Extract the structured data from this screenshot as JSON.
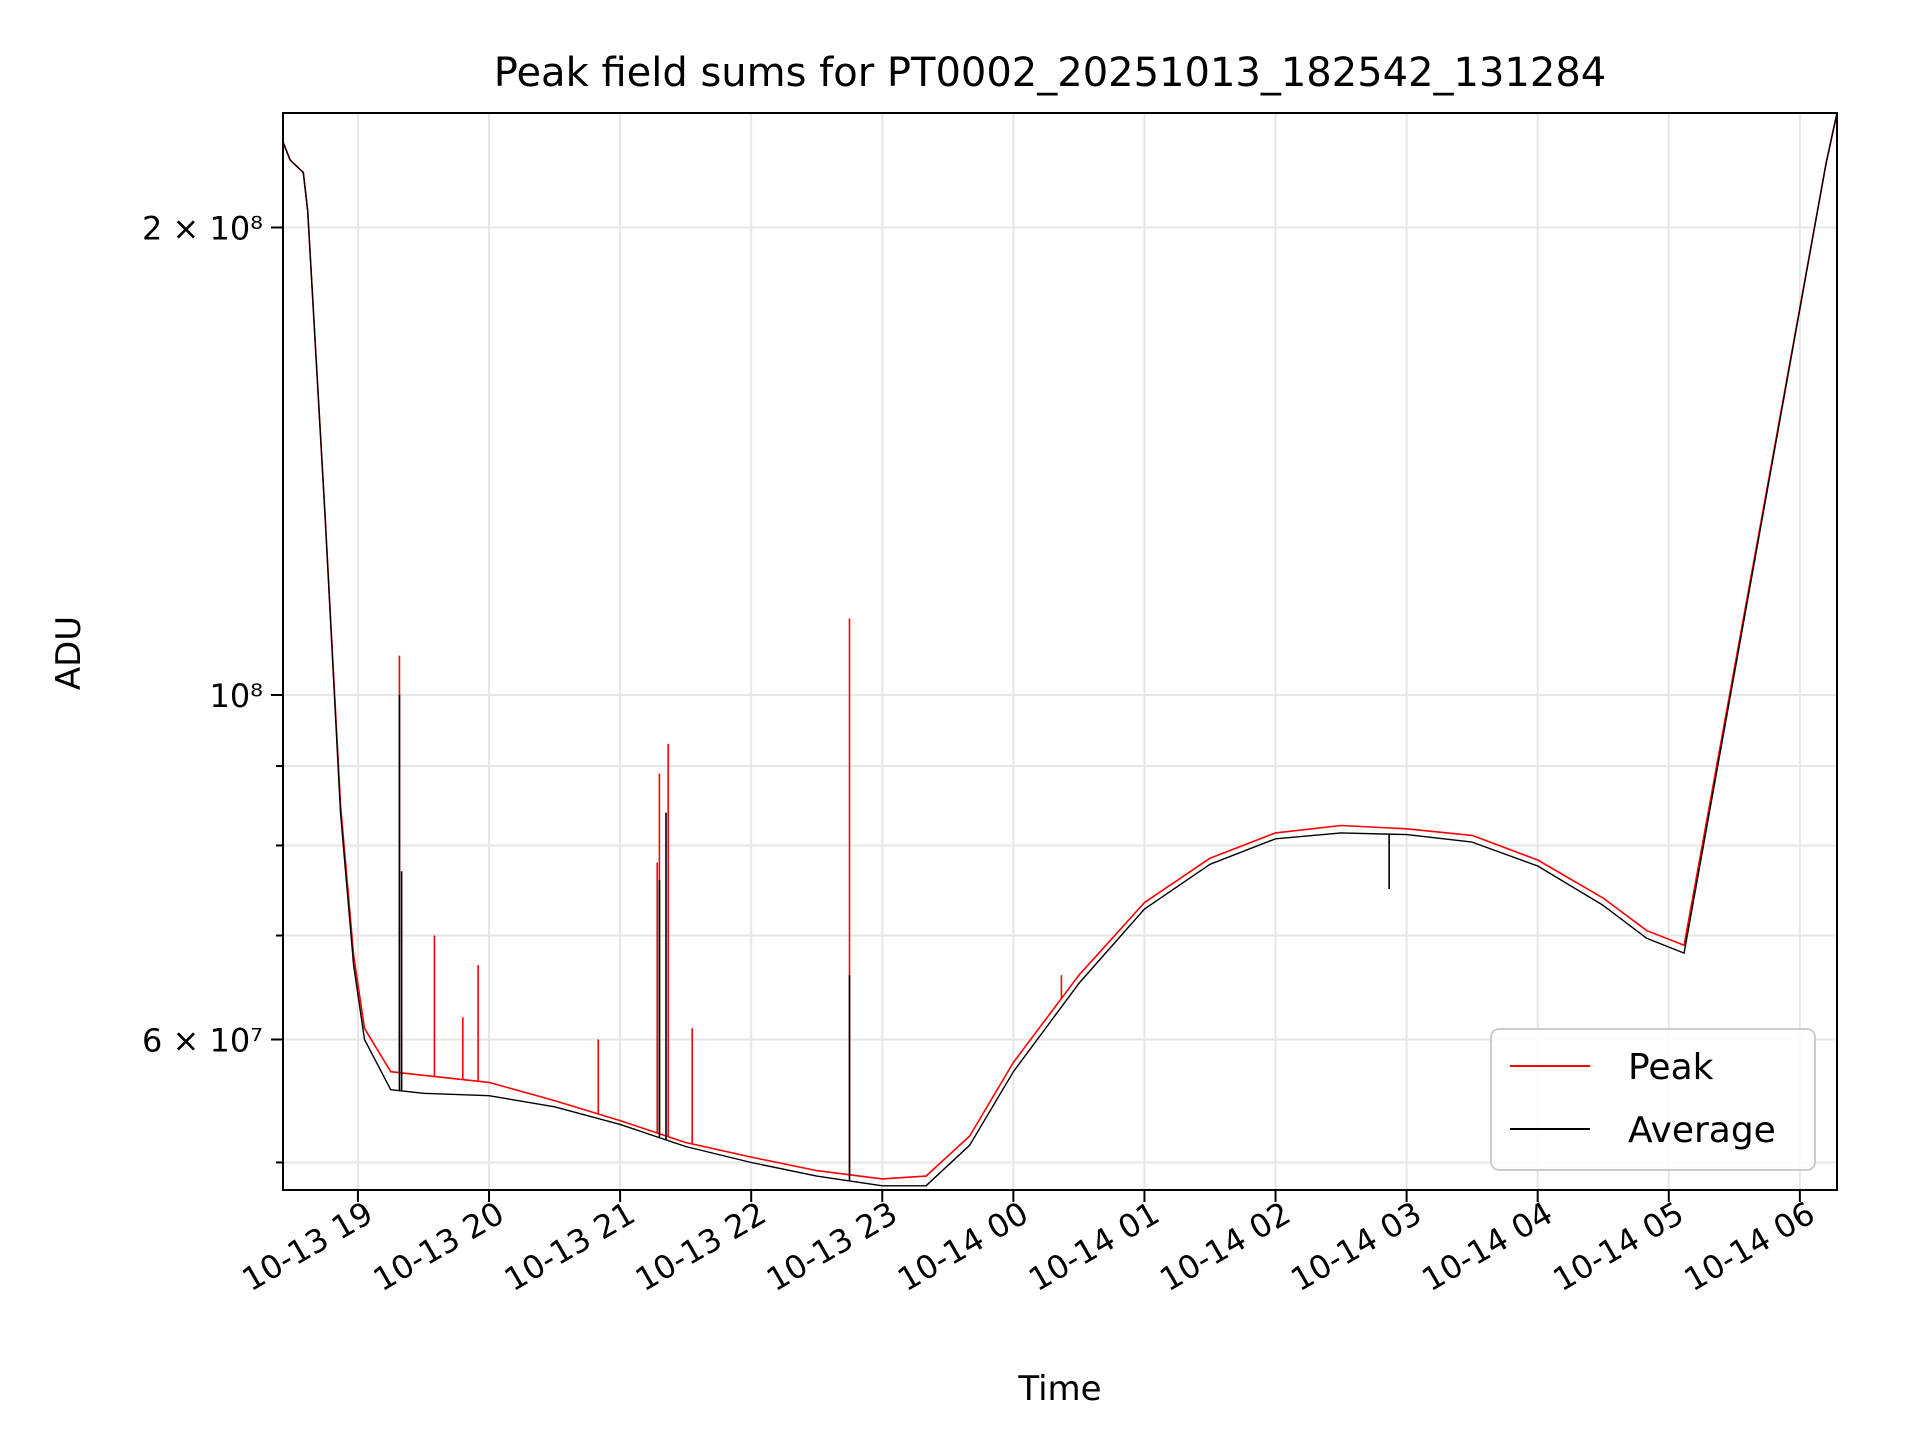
{
  "chart_data": {
    "type": "line",
    "title": "Peak field sums for PT0002_20251013_182542_131284",
    "xlabel": "Time",
    "ylabel": "ADU",
    "y_scale": "log",
    "ylim": [
      48000000,
      237000000
    ],
    "xlim": [
      "2025-10-13 18:25:42",
      "2025-10-14 06:17:00"
    ],
    "grid": true,
    "legend_position": "lower-right",
    "x_ticks": [
      {
        "label": "10-13 19",
        "time": "2025-10-13 19:00"
      },
      {
        "label": "10-13 20",
        "time": "2025-10-13 20:00"
      },
      {
        "label": "10-13 21",
        "time": "2025-10-13 21:00"
      },
      {
        "label": "10-13 22",
        "time": "2025-10-13 22:00"
      },
      {
        "label": "10-13 23",
        "time": "2025-10-13 23:00"
      },
      {
        "label": "10-14 00",
        "time": "2025-10-14 00:00"
      },
      {
        "label": "10-14 01",
        "time": "2025-10-14 01:00"
      },
      {
        "label": "10-14 02",
        "time": "2025-10-14 02:00"
      },
      {
        "label": "10-14 03",
        "time": "2025-10-14 03:00"
      },
      {
        "label": "10-14 04",
        "time": "2025-10-14 04:00"
      },
      {
        "label": "10-14 05",
        "time": "2025-10-14 05:00"
      },
      {
        "label": "10-14 06",
        "time": "2025-10-14 06:00"
      }
    ],
    "y_major_ticks": [
      {
        "label": "10⁸",
        "value": 100000000
      },
      {
        "label": "2 × 10⁸",
        "value": 200000000
      },
      {
        "label": "6 × 10⁷",
        "value": 60000000
      }
    ],
    "y_minor_ticks": [
      50000000,
      70000000,
      80000000,
      90000000
    ],
    "series": [
      {
        "name": "Peak",
        "color": "#ff0000",
        "x": [
          "2025-10-13 18:25:42",
          "2025-10-13 18:29",
          "2025-10-13 18:35",
          "2025-10-13 18:37",
          "2025-10-13 18:45",
          "2025-10-13 18:52",
          "2025-10-13 18:58",
          "2025-10-13 19:03",
          "2025-10-13 19:15",
          "2025-10-13 19:30",
          "2025-10-13 20:00",
          "2025-10-13 20:30",
          "2025-10-13 21:00",
          "2025-10-13 21:30",
          "2025-10-13 22:00",
          "2025-10-13 22:30",
          "2025-10-13 23:00",
          "2025-10-13 23:20",
          "2025-10-13 23:40",
          "2025-10-14 00:00",
          "2025-10-14 00:30",
          "2025-10-14 01:00",
          "2025-10-14 01:30",
          "2025-10-14 02:00",
          "2025-10-14 02:30",
          "2025-10-14 03:00",
          "2025-10-14 03:30",
          "2025-10-14 04:00",
          "2025-10-14 04:30",
          "2025-10-14 04:50",
          "2025-10-14 05:07",
          "2025-10-14 06:12",
          "2025-10-14 06:17"
        ],
        "y": [
          227000000,
          221000000,
          217000000,
          205000000,
          130000000,
          85000000,
          68000000,
          61000000,
          57200000,
          56900000,
          56300000,
          54800000,
          53200000,
          51500000,
          50400000,
          49400000,
          48800000,
          49000000,
          52000000,
          58000000,
          66000000,
          73500000,
          78500000,
          81500000,
          82400000,
          82000000,
          81200000,
          78300000,
          74000000,
          70500000,
          69000000,
          220000000,
          237000000
        ],
        "spikes": [
          {
            "x": "2025-10-13 19:19",
            "y": 106000000
          },
          {
            "x": "2025-10-13 19:35",
            "y": 70000000
          },
          {
            "x": "2025-10-13 19:48",
            "y": 62000000
          },
          {
            "x": "2025-10-13 19:55",
            "y": 67000000
          },
          {
            "x": "2025-10-13 20:50",
            "y": 60000000
          },
          {
            "x": "2025-10-13 21:17",
            "y": 78000000
          },
          {
            "x": "2025-10-13 21:18",
            "y": 89000000
          },
          {
            "x": "2025-10-13 21:22",
            "y": 93000000
          },
          {
            "x": "2025-10-13 21:33",
            "y": 61000000
          },
          {
            "x": "2025-10-13 22:45",
            "y": 112000000
          },
          {
            "x": "2025-10-14 00:22",
            "y": 66000000
          }
        ]
      },
      {
        "name": "Average",
        "color": "#000000",
        "x": [
          "2025-10-13 18:25:42",
          "2025-10-13 18:29",
          "2025-10-13 18:35",
          "2025-10-13 18:37",
          "2025-10-13 18:45",
          "2025-10-13 18:52",
          "2025-10-13 18:58",
          "2025-10-13 19:03",
          "2025-10-13 19:15",
          "2025-10-13 19:30",
          "2025-10-13 20:00",
          "2025-10-13 20:30",
          "2025-10-13 21:00",
          "2025-10-13 21:30",
          "2025-10-13 22:00",
          "2025-10-13 22:30",
          "2025-10-13 23:00",
          "2025-10-13 23:20",
          "2025-10-13 23:40",
          "2025-10-14 00:00",
          "2025-10-14 00:30",
          "2025-10-14 01:00",
          "2025-10-14 01:30",
          "2025-10-14 02:00",
          "2025-10-14 02:30",
          "2025-10-14 03:00",
          "2025-10-14 03:30",
          "2025-10-14 04:00",
          "2025-10-14 04:30",
          "2025-10-14 04:50",
          "2025-10-14 05:07",
          "2025-10-14 06:12",
          "2025-10-14 06:17"
        ],
        "y": [
          227000000,
          221000000,
          217000000,
          205000000,
          130000000,
          84000000,
          67000000,
          60000000,
          55700000,
          55400000,
          55200000,
          54300000,
          52900000,
          51200000,
          50000000,
          49000000,
          48300000,
          48300000,
          51300000,
          57200000,
          65200000,
          72800000,
          77800000,
          80800000,
          81500000,
          81300000,
          80400000,
          77600000,
          73200000,
          69700000,
          68200000,
          220000000,
          237000000
        ],
        "spikes": [
          {
            "x": "2025-10-13 19:19",
            "y": 100000000
          },
          {
            "x": "2025-10-13 19:20",
            "y": 77000000
          },
          {
            "x": "2025-10-13 21:18",
            "y": 76000000
          },
          {
            "x": "2025-10-13 21:21",
            "y": 84000000
          },
          {
            "x": "2025-10-13 22:45",
            "y": 66000000
          },
          {
            "x": "2025-10-14 02:52",
            "y": 75000000
          }
        ]
      }
    ]
  }
}
